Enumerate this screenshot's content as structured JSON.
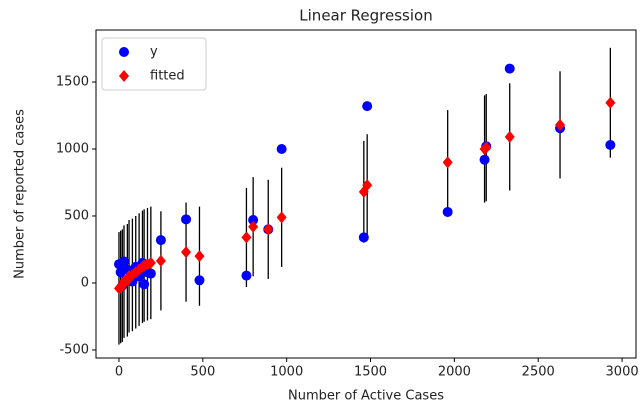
{
  "chart_data": {
    "type": "scatter",
    "title": "Linear Regression",
    "x_label": "Number of Active Cases",
    "y_label": "Number of reported cases",
    "x": [
      2930,
      2630,
      2330,
      2180,
      2190,
      1960,
      1480,
      1460,
      970,
      890,
      800,
      760,
      480,
      400,
      250,
      0,
      10,
      20,
      30,
      50,
      60,
      80,
      100,
      120,
      140,
      150,
      170,
      190
    ],
    "series": [
      {
        "name": "y",
        "color": "#0000ff",
        "marker": "circle",
        "values": [
          1030,
          1155,
          1600,
          920,
          1020,
          530,
          1320,
          340,
          1000,
          400,
          470,
          55,
          20,
          475,
          320,
          140,
          80,
          -20,
          160,
          100,
          30,
          10,
          120,
          50,
          150,
          -10,
          80,
          70
        ]
      },
      {
        "name": "fitted",
        "color": "#ff0000",
        "marker": "diamond",
        "error_color": "#000000",
        "values": [
          1345,
          1180,
          1090,
          1000,
          1010,
          900,
          730,
          680,
          490,
          400,
          420,
          340,
          200,
          230,
          165,
          -40,
          -30,
          -20,
          10,
          20,
          50,
          60,
          80,
          100,
          120,
          130,
          140,
          150
        ],
        "errors": [
          410,
          400,
          400,
          400,
          400,
          390,
          380,
          380,
          370,
          370,
          370,
          370,
          370,
          370,
          370,
          420,
          420,
          420,
          420,
          420,
          420,
          420,
          420,
          420,
          420,
          420,
          420,
          420
        ]
      }
    ],
    "xlim": [
      -137,
      3083
    ],
    "ylim": [
      -560,
      1888
    ],
    "xticks": [
      0,
      500,
      1000,
      1500,
      2000,
      2500,
      3000
    ],
    "yticks": [
      -500,
      0,
      500,
      1000,
      1500
    ],
    "legend": "upper left"
  }
}
